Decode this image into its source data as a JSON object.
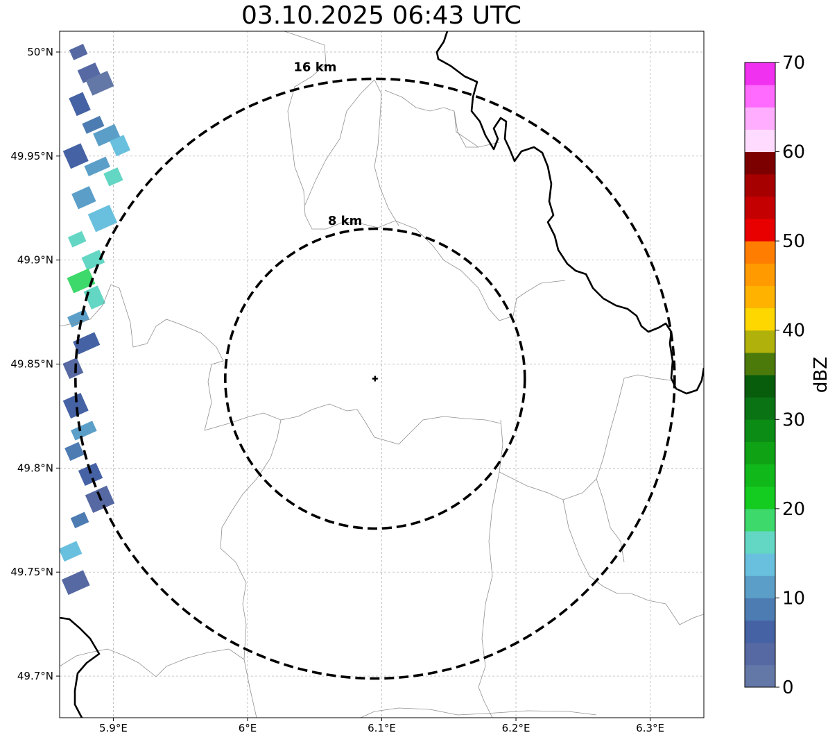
{
  "title": "03.10.2025 06:43 UTC",
  "chart_data": {
    "type": "heatmap",
    "title": "03.10.2025 06:43 UTC",
    "xlim": [
      5.86,
      6.34
    ],
    "ylim": [
      49.68,
      50.01
    ],
    "x_ticks": [
      {
        "value": 5.9,
        "label": "5.9°E"
      },
      {
        "value": 6.0,
        "label": "6°E"
      },
      {
        "value": 6.1,
        "label": "6.1°E"
      },
      {
        "value": 6.2,
        "label": "6.2°E"
      },
      {
        "value": 6.3,
        "label": "6.3°E"
      }
    ],
    "y_ticks": [
      {
        "value": 50.0,
        "label": "50°N"
      },
      {
        "value": 49.95,
        "label": "49.95°N"
      },
      {
        "value": 49.9,
        "label": "49.9°N"
      },
      {
        "value": 49.85,
        "label": "49.85°N"
      },
      {
        "value": 49.8,
        "label": "49.8°N"
      },
      {
        "value": 49.75,
        "label": "49.75°N"
      },
      {
        "value": 49.7,
        "label": "49.7°N"
      }
    ],
    "grid": true,
    "radar_site": {
      "lon": 6.095,
      "lat": 49.843
    },
    "range_rings": [
      {
        "radius_km": 8,
        "label": "8 km"
      },
      {
        "radius_km": 16,
        "label": "16 km"
      }
    ],
    "colorbar": {
      "label": "dBZ",
      "min": 0,
      "max": 70,
      "step": 2.5,
      "tick_values": [
        0,
        10,
        20,
        30,
        40,
        50,
        60,
        70
      ],
      "tick_labels": [
        "0",
        "10",
        "20",
        "30",
        "40",
        "50",
        "60",
        "70"
      ],
      "colors": [
        "#6478a8",
        "#5669a3",
        "#4562a4",
        "#4d7cb2",
        "#5b9fc9",
        "#69c0de",
        "#63d6c4",
        "#3dd96b",
        "#14cc20",
        "#10b81a",
        "#0fa215",
        "#0b8c14",
        "#0a7414",
        "#075d0b",
        "#4b7a0b",
        "#b0b10b",
        "#ffd700",
        "#ffb300",
        "#ff9a00",
        "#ff7d00",
        "#e80000",
        "#c40000",
        "#a60000",
        "#7d0000",
        "#ffdcff",
        "#ffaeff",
        "#ff6aff",
        "#f032f0"
      ]
    },
    "reflectivity_cells": [
      {
        "lon": 5.874,
        "lat": 50.0,
        "dbz": 4
      },
      {
        "lon": 5.882,
        "lat": 49.99,
        "dbz": 3
      },
      {
        "lon": 5.89,
        "lat": 49.985,
        "dbz": 2
      },
      {
        "lon": 5.875,
        "lat": 49.975,
        "dbz": 5
      },
      {
        "lon": 5.885,
        "lat": 49.965,
        "dbz": 9
      },
      {
        "lon": 5.895,
        "lat": 49.96,
        "dbz": 11
      },
      {
        "lon": 5.905,
        "lat": 49.955,
        "dbz": 13
      },
      {
        "lon": 5.872,
        "lat": 49.95,
        "dbz": 7
      },
      {
        "lon": 5.888,
        "lat": 49.945,
        "dbz": 12
      },
      {
        "lon": 5.9,
        "lat": 49.94,
        "dbz": 15
      },
      {
        "lon": 5.878,
        "lat": 49.93,
        "dbz": 11
      },
      {
        "lon": 5.892,
        "lat": 49.92,
        "dbz": 13
      },
      {
        "lon": 5.873,
        "lat": 49.91,
        "dbz": 15
      },
      {
        "lon": 5.885,
        "lat": 49.9,
        "dbz": 17
      },
      {
        "lon": 5.876,
        "lat": 49.89,
        "dbz": 18
      },
      {
        "lon": 5.886,
        "lat": 49.882,
        "dbz": 16
      },
      {
        "lon": 5.874,
        "lat": 49.872,
        "dbz": 12
      },
      {
        "lon": 5.88,
        "lat": 49.86,
        "dbz": 6
      },
      {
        "lon": 5.87,
        "lat": 49.848,
        "dbz": 4
      },
      {
        "lon": 5.872,
        "lat": 49.83,
        "dbz": 7
      },
      {
        "lon": 5.878,
        "lat": 49.818,
        "dbz": 12
      },
      {
        "lon": 5.871,
        "lat": 49.808,
        "dbz": 8
      },
      {
        "lon": 5.883,
        "lat": 49.797,
        "dbz": 6
      },
      {
        "lon": 5.89,
        "lat": 49.785,
        "dbz": 4
      },
      {
        "lon": 5.875,
        "lat": 49.775,
        "dbz": 9
      },
      {
        "lon": 5.868,
        "lat": 49.76,
        "dbz": 14
      },
      {
        "lon": 5.872,
        "lat": 49.745,
        "dbz": 4
      }
    ],
    "annotations": [
      "16 km",
      "8 km"
    ]
  }
}
